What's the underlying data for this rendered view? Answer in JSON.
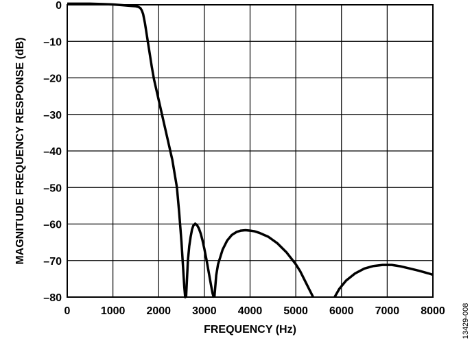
{
  "chart_data": {
    "type": "line",
    "xlabel": "FREQUENCY (Hz)",
    "ylabel": "MAGNITUDE FREQUENCY RESPONSE (dB)",
    "xlim": [
      0,
      8000
    ],
    "ylim": [
      -80,
      0
    ],
    "x_ticks": [
      0,
      1000,
      2000,
      3000,
      4000,
      5000,
      6000,
      7000,
      8000
    ],
    "y_ticks": [
      0,
      -10,
      -20,
      -30,
      -40,
      -50,
      -60,
      -70,
      -80
    ],
    "x_tick_labels": [
      "0",
      "1000",
      "2000",
      "3000",
      "4000",
      "5000",
      "6000",
      "7000",
      "8000"
    ],
    "y_tick_labels": [
      "0",
      "–10",
      "–20",
      "–30",
      "–40",
      "–50",
      "–60",
      "–70",
      "–80"
    ],
    "grid": true,
    "line_color": "#000000",
    "series": [
      {
        "segments": [
          {
            "x": [
              0,
              200,
              500,
              800,
              1000,
              1200,
              1400,
              1500,
              1560,
              1600,
              1630,
              1660,
              1700,
              1750,
              1800,
              1850,
              1900,
              2000,
              2100,
              2200,
              2300,
              2400,
              2450,
              2500,
              2530,
              2560,
              2580,
              2600
            ],
            "y": [
              0.3,
              0.3,
              0.3,
              0.2,
              0.1,
              -0.1,
              -0.3,
              -0.4,
              -0.6,
              -0.9,
              -1.5,
              -2.5,
              -5,
              -9,
              -13,
              -17,
              -20.5,
              -26,
              -31.5,
              -37,
              -42.5,
              -50,
              -57,
              -65,
              -71,
              -77,
              -80,
              -80
            ]
          },
          {
            "x": [
              2600,
              2640,
              2670,
              2700,
              2730,
              2760,
              2800,
              2840,
              2880,
              2920,
              2960,
              3000,
              3050,
              3100,
              3150,
              3180,
              3200,
              3220
            ],
            "y": [
              -80,
              -70,
              -66,
              -63.5,
              -61.5,
              -60.4,
              -59.9,
              -60.3,
              -61.2,
              -62.6,
              -64.5,
              -66.8,
              -70,
              -73.5,
              -77,
              -79,
              -79.8,
              -80
            ]
          },
          {
            "x": [
              3220,
              3260,
              3300,
              3400,
              3500,
              3600,
              3700,
              3800,
              3900,
              4000,
              4100,
              4200,
              4400,
              4600,
              4800,
              5000,
              5100,
              5200,
              5300,
              5380
            ],
            "y": [
              -80,
              -74,
              -71,
              -67,
              -64.5,
              -63,
              -62.2,
              -61.8,
              -61.7,
              -61.8,
              -62,
              -62.4,
              -63.5,
              -65.3,
              -67.8,
              -71,
              -73,
              -75.5,
              -78,
              -80
            ]
          },
          {
            "x": [
              5850,
              5950,
              6100,
              6300,
              6500,
              6700,
              6900,
              7000,
              7100,
              7300,
              7500,
              7700,
              7900,
              8000
            ],
            "y": [
              -80,
              -77.8,
              -75.5,
              -73.5,
              -72.2,
              -71.5,
              -71.2,
              -71.2,
              -71.2,
              -71.6,
              -72.2,
              -72.8,
              -73.5,
              -73.9
            ]
          }
        ]
      }
    ]
  },
  "figure_id": "13429-008"
}
